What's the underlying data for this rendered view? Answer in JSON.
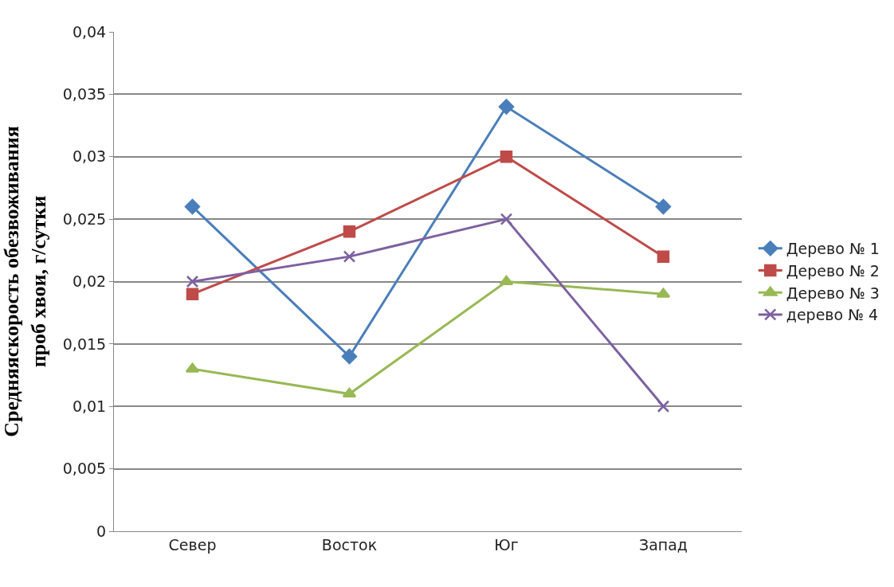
{
  "chart_data": {
    "type": "line",
    "ylabel": "Средняяскорость обезвоживания\nпроб хвои, г/сутки",
    "categories": [
      "Север",
      "Восток",
      "Юг",
      "Запад"
    ],
    "series": [
      {
        "name": "Дерево № 1",
        "color": "#4a7ebb",
        "marker": "diamond",
        "values": [
          0.026,
          0.014,
          0.034,
          0.026
        ]
      },
      {
        "name": "Дерево № 2",
        "color": "#be4b48",
        "marker": "square",
        "values": [
          0.019,
          0.024,
          0.03,
          0.022
        ]
      },
      {
        "name": "Дерево № 3",
        "color": "#98b954",
        "marker": "triangle",
        "values": [
          0.013,
          0.011,
          0.02,
          0.019
        ]
      },
      {
        "name": "дерево № 4",
        "color": "#7d60a0",
        "marker": "cross",
        "values": [
          0.02,
          0.022,
          0.025,
          0.01
        ]
      }
    ],
    "ylim": [
      0,
      0.04
    ],
    "yticks": [
      {
        "value": 0,
        "label": "0"
      },
      {
        "value": 0.005,
        "label": "0,005"
      },
      {
        "value": 0.01,
        "label": "0,01"
      },
      {
        "value": 0.015,
        "label": "0,015"
      },
      {
        "value": 0.02,
        "label": "0,02"
      },
      {
        "value": 0.025,
        "label": "0,025"
      },
      {
        "value": 0.03,
        "label": "0,03"
      },
      {
        "value": 0.035,
        "label": "0,035"
      },
      {
        "value": 0.04,
        "label": "0,04"
      }
    ],
    "grid": "y",
    "legend": "right"
  }
}
